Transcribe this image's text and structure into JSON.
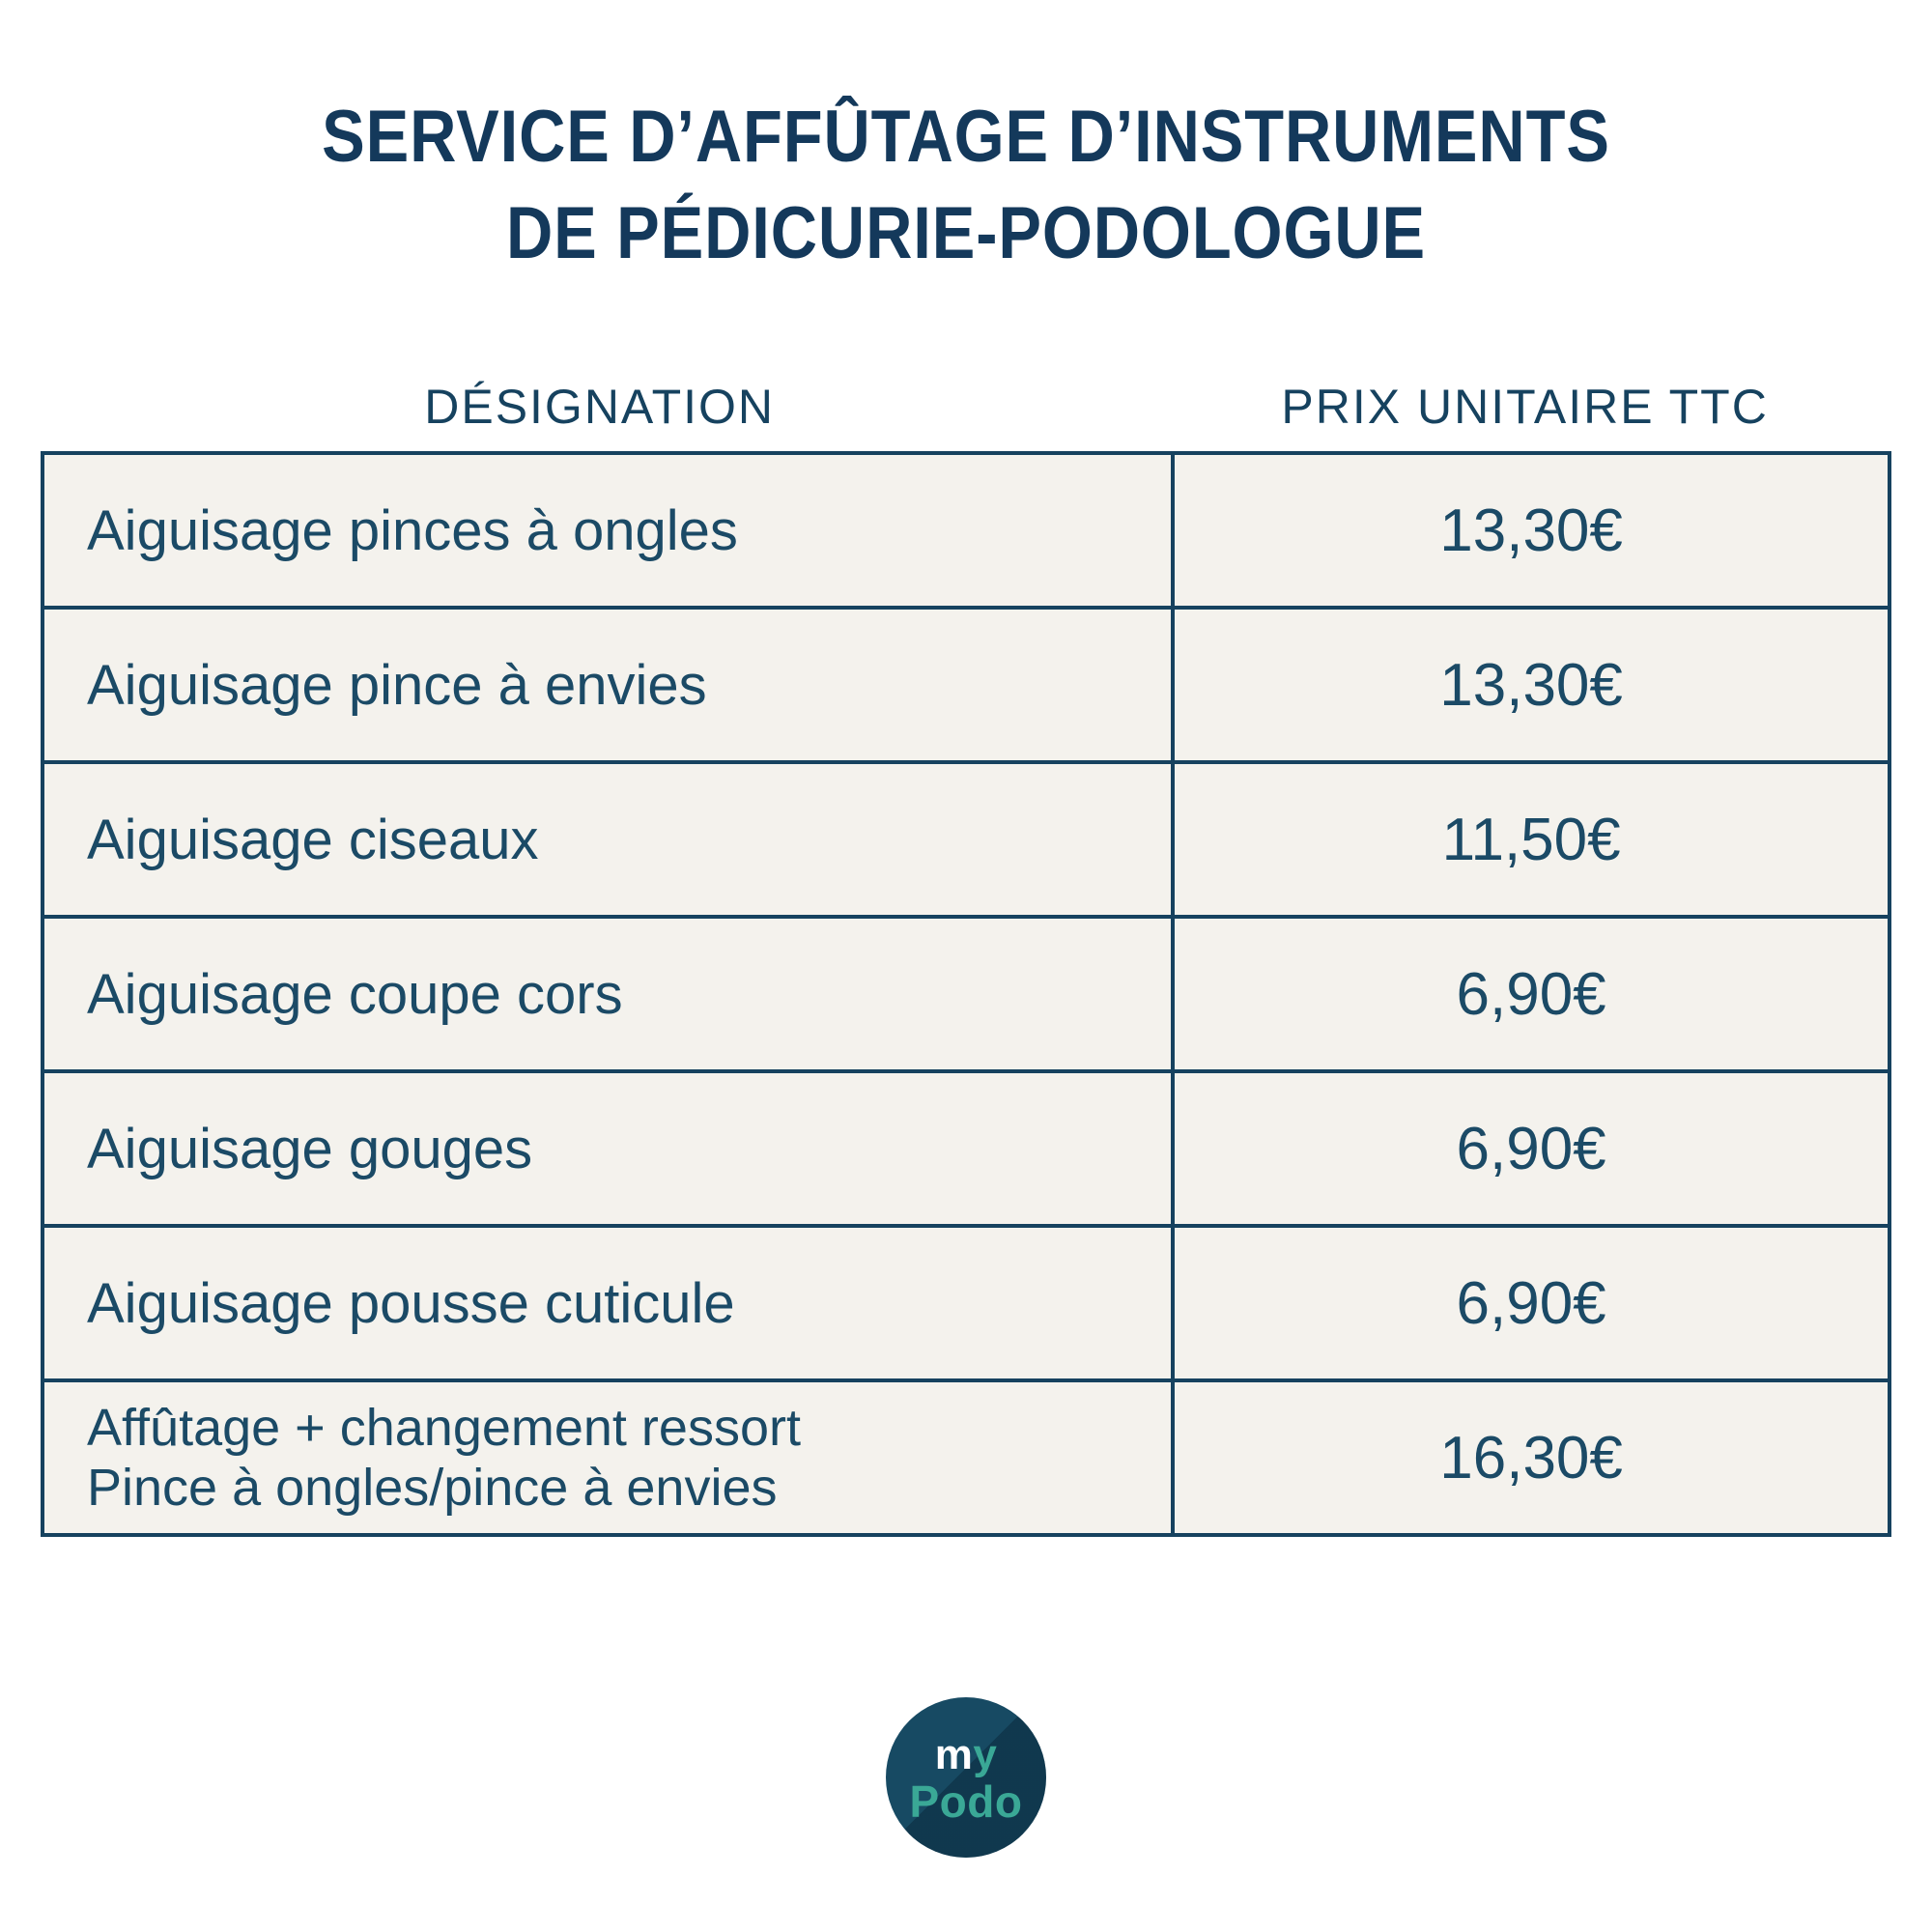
{
  "title": {
    "line1": "SERVICE D’AFFÛTAGE D’INSTRUMENTS",
    "line2": "DE PÉDICURIE-PODOLOGUE"
  },
  "table": {
    "columns": [
      "DÉSIGNATION",
      "PRIX UNITAIRE TTC"
    ],
    "rows": [
      {
        "designation": "Aiguisage pinces à ongles",
        "price": "13,30€"
      },
      {
        "designation": "Aiguisage pince à envies",
        "price": "13,30€"
      },
      {
        "designation": "Aiguisage ciseaux",
        "price": "11,50€"
      },
      {
        "designation": "Aiguisage coupe cors",
        "price": "6,90€"
      },
      {
        "designation": "Aiguisage gouges",
        "price": "6,90€"
      },
      {
        "designation": "Aiguisage pousse cuticule",
        "price": "6,90€"
      },
      {
        "designation": "Affûtage + changement ressort",
        "designation2": "Pince à ongles/pince à envies",
        "price": "16,30€"
      }
    ]
  },
  "logo": {
    "my_m": "m",
    "my_y": "y",
    "podo": "Podo"
  },
  "colors": {
    "navy_text": "#16425f",
    "title_navy": "#14395b",
    "cell_background": "#f4f2ed",
    "logo_circle": "#174a63",
    "logo_teal": "#3aa896",
    "page_background": "#ffffff"
  }
}
